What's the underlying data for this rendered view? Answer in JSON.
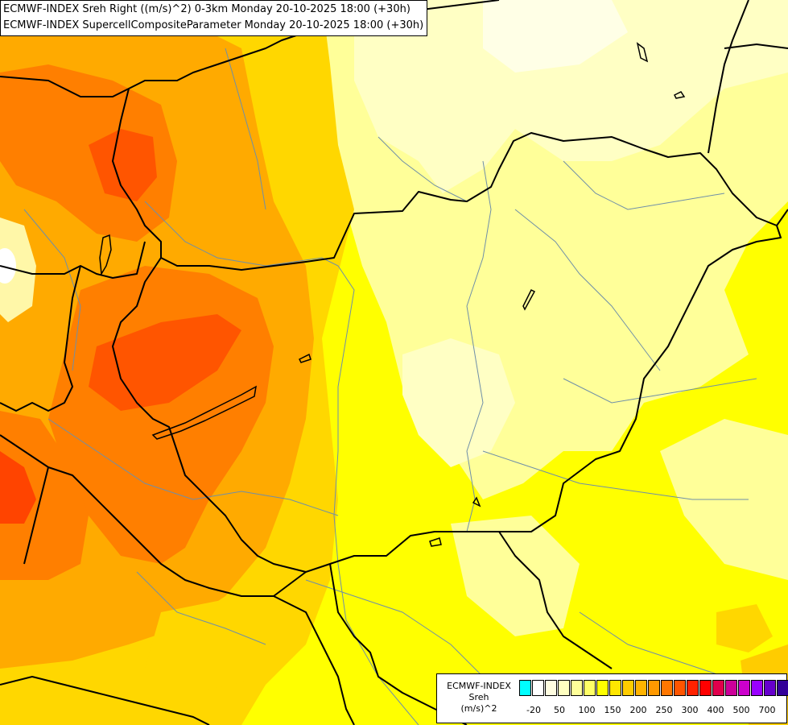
{
  "header": {
    "line1": "ECMWF-INDEX Sreh Right ((m/s)^2) 0-3km Monday 20-10-2025 18:00 (+30h)",
    "line2": "ECMWF-INDEX SupercellCompositeParameter Monday 20-10-2025 18:00 (+30h)"
  },
  "legend": {
    "line1": "ECMWF-INDEX",
    "line2": "Sreh",
    "line3": "(m/s)^2",
    "ticks": [
      "-20",
      "50",
      "100",
      "150",
      "200",
      "250",
      "300",
      "400",
      "500",
      "700"
    ],
    "colors": [
      "#00ffff",
      "#ffffff",
      "#fffde0",
      "#ffffc0",
      "#ffff99",
      "#ffff66",
      "#ffff00",
      "#ffe600",
      "#ffcc00",
      "#ffb300",
      "#ff9900",
      "#ff7700",
      "#ff5500",
      "#ff2200",
      "#ff0000",
      "#e0004c",
      "#cc0099",
      "#cc00cc",
      "#9900ff",
      "#6600cc",
      "#330099",
      "#000080"
    ]
  },
  "map": {
    "region": "Central Europe (Hungary and surroundings)",
    "colors": {
      "base": "#ffff00",
      "pale": "#ffff99",
      "paler": "#ffffc4",
      "light_orange": "#ffd700",
      "orange": "#ffaa00",
      "dark_orange": "#ff7f00",
      "red_orange": "#ff5500",
      "border": "#000000",
      "river": "#6f8fa8"
    }
  }
}
